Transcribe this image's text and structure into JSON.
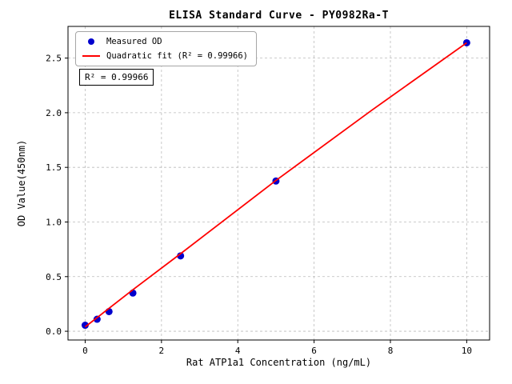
{
  "figure": {
    "background": "#ffffff"
  },
  "chart_data": {
    "type": "scatter",
    "title": "ELISA Standard Curve - PY0982Ra-T",
    "xlabel": "Rat ATP1a1 Concentration (ng/mL)",
    "ylabel": "OD Value(450nm)",
    "xlim": [
      -0.45,
      10.6
    ],
    "ylim": [
      -0.08,
      2.79
    ],
    "x_ticks": [
      0,
      2,
      4,
      6,
      8,
      10
    ],
    "x_tick_labels": [
      "0",
      "2",
      "4",
      "6",
      "8",
      "10"
    ],
    "y_ticks": [
      0.0,
      0.5,
      1.0,
      1.5,
      2.0,
      2.5
    ],
    "y_tick_labels": [
      "0.0",
      "0.5",
      "1.0",
      "1.5",
      "2.0",
      "2.5"
    ],
    "grid": true,
    "grid_style": "dashed",
    "legend_position": "upper left",
    "annotation": "R² = 0.99966",
    "series": [
      {
        "name": "Measured OD",
        "type": "scatter",
        "color": "#0000cd",
        "x": [
          0,
          0.3125,
          0.625,
          1.25,
          2.5,
          5,
          10
        ],
        "y": [
          0.055,
          0.11,
          0.18,
          0.35,
          0.69,
          1.375,
          2.64
        ]
      },
      {
        "name": "Quadratic fit (R² = 0.99966)",
        "type": "line",
        "color": "#ff0000",
        "x": [
          0,
          1.25,
          2.5,
          5,
          7.5,
          10
        ],
        "y": [
          0.04,
          0.38,
          0.71,
          1.38,
          2.02,
          2.64
        ]
      }
    ]
  },
  "legend": {
    "entries": [
      {
        "label": "Measured OD",
        "marker": "dot",
        "color": "#0000cd"
      },
      {
        "label": "Quadratic fit (R² = 0.99966)",
        "marker": "line",
        "color": "#ff0000"
      }
    ]
  }
}
